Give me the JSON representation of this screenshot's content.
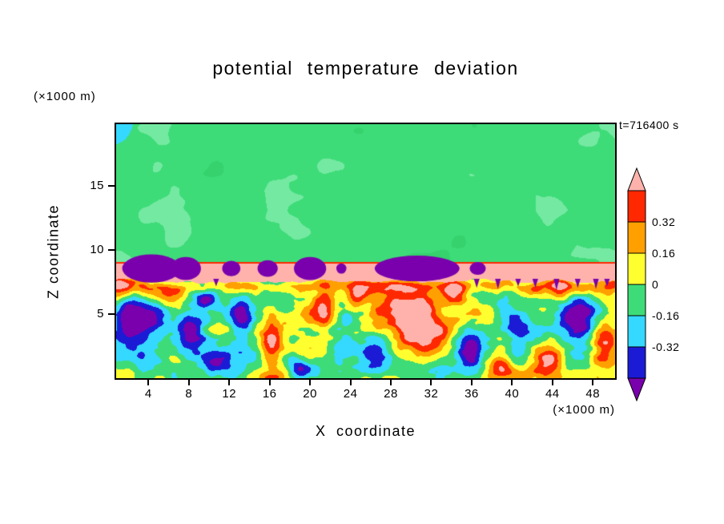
{
  "title": "potential temperature deviation",
  "time_label": "t=716400 s",
  "x_axis": {
    "label": "X coordinate",
    "unit_label": "(×1000 m)",
    "ticks": [
      4,
      8,
      12,
      16,
      20,
      24,
      28,
      32,
      36,
      40,
      44,
      48
    ]
  },
  "z_axis": {
    "label": "Z coordinate",
    "unit_label": "(×1000 m)",
    "ticks": [
      5,
      10,
      15
    ]
  },
  "colorbar": {
    "tick_labels": [
      "0.32",
      "0.16",
      "0",
      "-0.16",
      "-0.32"
    ]
  },
  "chart_data": {
    "type": "heatmap",
    "title": "potential temperature deviation",
    "xlabel": "X coordinate (×1000 m)",
    "ylabel": "Z coordinate (×1000 m)",
    "time": "t=716400 s",
    "x_range": [
      0,
      50
    ],
    "z_range": [
      0,
      20
    ],
    "labeled_levels": [
      0.32,
      0.16,
      0,
      -0.16,
      -0.32
    ],
    "contour_levels": [
      -0.48,
      -0.32,
      -0.16,
      0,
      0.16,
      0.32,
      0.48
    ],
    "palette": [
      "#7a00ad",
      "#1b1bd6",
      "#35d8ff",
      "#3edc78",
      "#ffff30",
      "#ffa000",
      "#ff2800",
      "#ffb2ac"
    ],
    "palette_light_green": "#74e9a2",
    "palette_deep_green": "#35d26e",
    "upper_region": {
      "z_above": 9.0,
      "mean_value": 0,
      "description": "free atmosphere: near-zero deviation (green) with faint lighter-green patches and a small cool (cyan) patch in the top-left corner"
    },
    "inversion_layer": {
      "z_bottom": 7.6,
      "z_top": 9.0,
      "value_band": "0.32 to 0.48 (pink), capped by a thin red line at the top"
    },
    "overshoot_domes": [
      {
        "x": 4.3,
        "half_width": 2.9,
        "height": 1.1
      },
      {
        "x": 7.7,
        "half_width": 1.5,
        "height": 0.9
      },
      {
        "x": 12.2,
        "half_width": 0.9,
        "height": 0.6
      },
      {
        "x": 15.8,
        "half_width": 1.0,
        "height": 0.65
      },
      {
        "x": 20.0,
        "half_width": 1.6,
        "height": 0.9
      },
      {
        "x": 23.1,
        "half_width": 0.5,
        "height": 0.4
      },
      {
        "x": 30.6,
        "half_width": 4.2,
        "height": 1.0
      },
      {
        "x": 36.6,
        "half_width": 0.8,
        "height": 0.5
      }
    ],
    "downdraft_spikes": [
      {
        "x": 10.7,
        "depth": 0.6
      },
      {
        "x": 36.5,
        "depth": 0.7
      },
      {
        "x": 38.6,
        "depth": 0.8
      },
      {
        "x": 40.6,
        "depth": 0.6
      },
      {
        "x": 42.3,
        "depth": 0.7
      },
      {
        "x": 44.4,
        "depth": 0.9
      },
      {
        "x": 46.5,
        "depth": 0.7
      },
      {
        "x": 48.3,
        "depth": 0.8
      },
      {
        "x": 49.4,
        "depth": 0.6
      }
    ],
    "cells_format": "[x_center, z_center, sigma_x, sigma_z, amplitude] gaussian anomalies in the convective boundary layer (z < ~7.6)",
    "boundary_layer_cells": [
      [
        3.0,
        4.2,
        2.3,
        1.9,
        -0.8
      ],
      [
        8.1,
        3.3,
        1.5,
        1.5,
        -0.6
      ],
      [
        13.2,
        4.6,
        1.1,
        2.0,
        -0.5
      ],
      [
        11.0,
        1.3,
        1.4,
        1.1,
        -0.45
      ],
      [
        18.9,
        0.9,
        1.3,
        0.9,
        -0.4
      ],
      [
        23.0,
        3.2,
        1.6,
        1.6,
        -0.3
      ],
      [
        26.6,
        1.6,
        1.6,
        1.3,
        -0.55
      ],
      [
        35.8,
        2.2,
        1.3,
        1.6,
        -0.5
      ],
      [
        40.3,
        3.8,
        1.6,
        1.4,
        -0.45
      ],
      [
        46.6,
        4.6,
        1.9,
        1.5,
        -0.6
      ],
      [
        9.6,
        6.1,
        1.0,
        0.9,
        -0.35
      ],
      [
        0.8,
        6.9,
        1.2,
        0.9,
        0.5
      ],
      [
        6.2,
        6.4,
        1.6,
        0.8,
        0.45
      ],
      [
        16.2,
        2.6,
        1.1,
        2.0,
        0.6
      ],
      [
        21.6,
        5.6,
        1.2,
        1.6,
        0.6
      ],
      [
        24.6,
        6.4,
        1.0,
        0.9,
        0.5
      ],
      [
        30.6,
        4.1,
        3.0,
        2.3,
        0.85
      ],
      [
        34.2,
        6.6,
        1.4,
        0.9,
        0.5
      ],
      [
        38.6,
        1.1,
        1.6,
        1.0,
        0.5
      ],
      [
        43.7,
        1.5,
        1.6,
        1.2,
        0.55
      ],
      [
        49.2,
        2.6,
        1.3,
        1.6,
        0.45
      ],
      [
        44.8,
        6.9,
        1.1,
        0.8,
        0.45
      ]
    ]
  }
}
